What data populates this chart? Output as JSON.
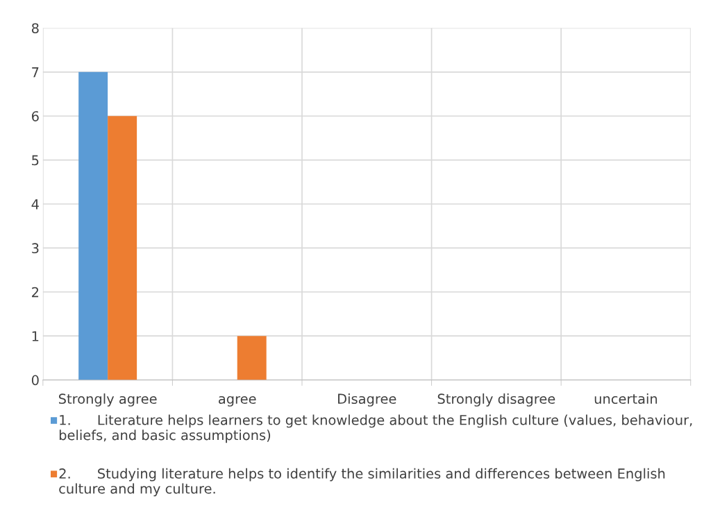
{
  "chart_data": {
    "type": "bar",
    "categories": [
      "Strongly agree",
      "agree",
      "Disagree",
      "Strongly disagree",
      "uncertain"
    ],
    "series": [
      {
        "name": "1.      Literature helps learners to get knowledge about the English culture (values, behaviour, beliefs, and basic assumptions)",
        "color": "#5b9bd5",
        "values": [
          7,
          0,
          0,
          0,
          0
        ]
      },
      {
        "name": "2.      Studying literature helps to identify the similarities and differences between English culture and my culture.",
        "color": "#ed7d31",
        "values": [
          6,
          1,
          0,
          0,
          0
        ]
      }
    ],
    "ylim": [
      0,
      8
    ],
    "yticks": [
      0,
      1,
      2,
      3,
      4,
      5,
      6,
      7,
      8
    ],
    "grid": true,
    "legend": "bottom"
  }
}
